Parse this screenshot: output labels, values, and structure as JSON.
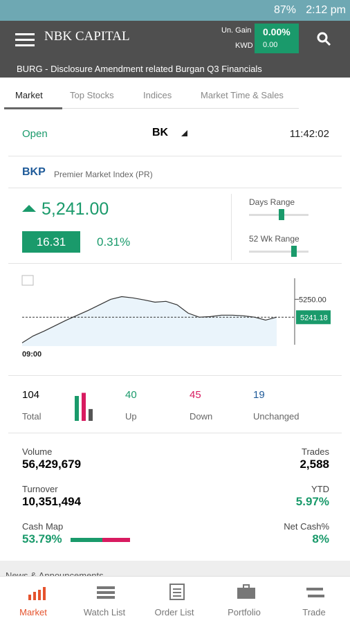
{
  "status_bar": {
    "battery": "87%",
    "time": "2:12 pm"
  },
  "header": {
    "logo": "NBK CAPITAL",
    "gain_label": "Un. Gain",
    "gain_pct": "0.00%",
    "currency": "KWD",
    "gain_value": "0.00"
  },
  "ticker": "BURG - Disclosure Amendment related Burgan Q3 Financials",
  "tabs": [
    "Market",
    "Top Stocks",
    "Indices",
    "Market Time & Sales"
  ],
  "market": {
    "status": "Open",
    "exchange": "BK",
    "time": "11:42:02"
  },
  "index": {
    "symbol": "BKP",
    "name": "Premier Market Index (PR)",
    "price": "5,241.00",
    "change": "16.31",
    "change_pct": "0.31%",
    "days_range": "Days Range",
    "wk_range": "52 Wk Range"
  },
  "chart": {
    "type": "line",
    "x_label": "09:00",
    "color": "#333333",
    "values": [
      5228.6,
      5232.0,
      5234.4,
      5237.1,
      5239.8,
      5242.2,
      5244.6,
      5247.3,
      5250.0,
      5251.3,
      5250.7,
      5249.7,
      5248.6,
      5249.0,
      5247.3,
      5243.2,
      5241.2,
      5241.5,
      5242.2,
      5242.2,
      5241.9,
      5241.2,
      5239.8,
      5241.2
    ],
    "ylim": [
      5227,
      5261
    ],
    "yticks": [
      {
        "value": 5250,
        "label": "5250.00"
      }
    ],
    "last": {
      "value": 5241.18,
      "label": "5241.18"
    }
  },
  "breadth": {
    "total": 104,
    "total_label": "Total",
    "up": 40,
    "up_label": "Up",
    "down": 45,
    "down_label": "Down",
    "unchanged": 19,
    "unchanged_label": "Unchanged"
  },
  "stats": {
    "volume_label": "Volume",
    "volume": "56,429,679",
    "trades_label": "Trades",
    "trades": "2,588",
    "turnover_label": "Turnover",
    "turnover": "10,351,494",
    "ytd_label": "YTD",
    "ytd": "5.97%",
    "cash_map_label": "Cash Map",
    "cash_map": {
      "value": 53.79,
      "label": "53.79%"
    },
    "net_cash_label": "Net Cash%",
    "net_cash": "8%"
  },
  "news": "News & Announcements",
  "nav": [
    "Market",
    "Watch List",
    "Order List",
    "Portfolio",
    "Trade"
  ]
}
